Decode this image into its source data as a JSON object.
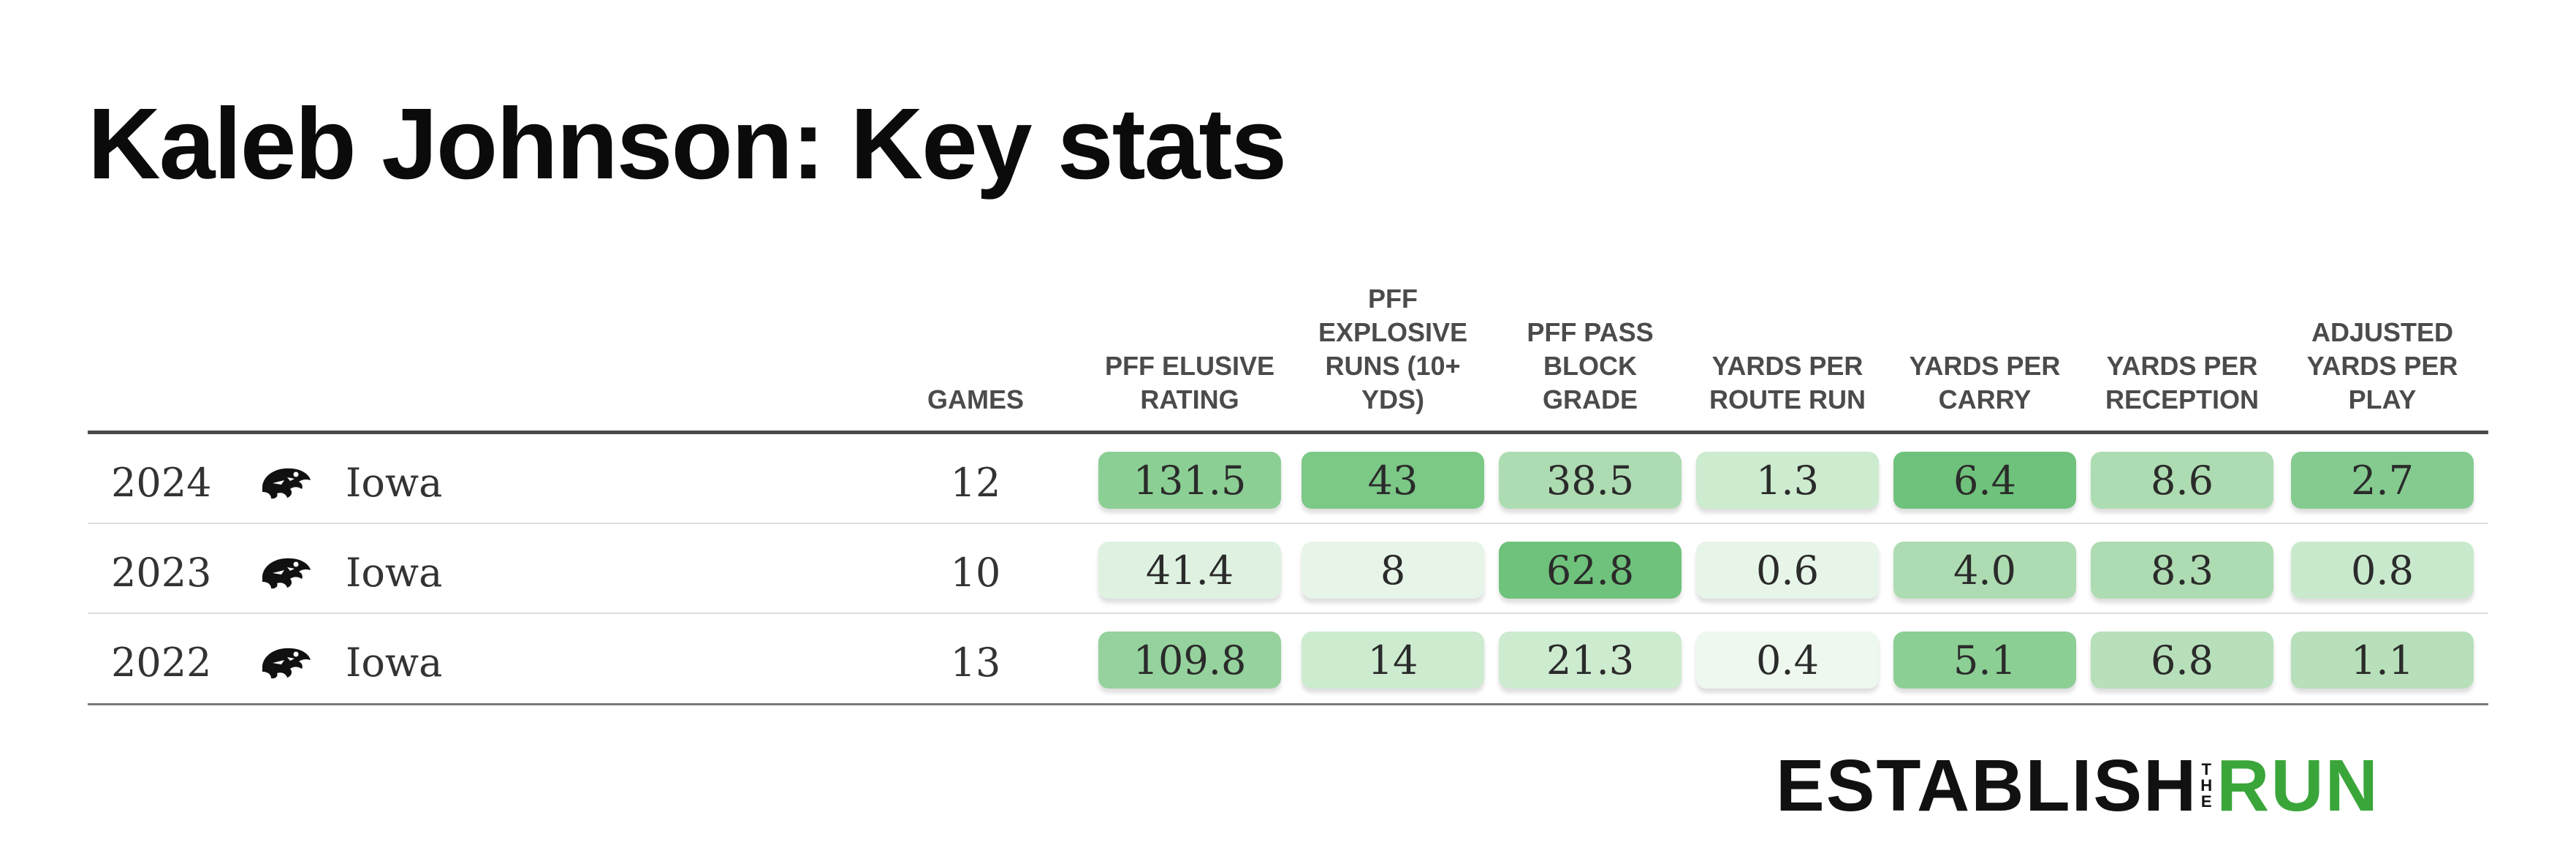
{
  "title": "Kaleb Johnson: Key stats",
  "brand": {
    "part1": "ESTABLISH",
    "connector": "THE",
    "part2": "RUN",
    "color": "#3aa63a"
  },
  "team_logo_icon": "iowa-hawkeye-icon",
  "chart_data": {
    "type": "table",
    "columns": [
      "GAMES",
      "PFF ELUSIVE\nRATING",
      "PFF\nEXPLOSIVE\nRUNS (10+\nYDS)",
      "PFF PASS\nBLOCK\nGRADE",
      "YARDS PER\nROUTE RUN",
      "YARDS PER\nCARRY",
      "YARDS PER\nRECEPTION",
      "ADJUSTED\nYARDS PER\nPLAY"
    ],
    "rows": [
      {
        "year": "2024",
        "team": "Iowa",
        "games": "12",
        "stats": [
          "131.5",
          "43",
          "38.5",
          "1.3",
          "6.4",
          "8.6",
          "2.7"
        ]
      },
      {
        "year": "2023",
        "team": "Iowa",
        "games": "10",
        "stats": [
          "41.4",
          "8",
          "62.8",
          "0.6",
          "4.0",
          "8.3",
          "0.8"
        ]
      },
      {
        "year": "2022",
        "team": "Iowa",
        "games": "13",
        "stats": [
          "109.8",
          "14",
          "21.3",
          "0.4",
          "5.1",
          "6.8",
          "1.1"
        ]
      }
    ],
    "cell_colors": [
      [
        "#8ccf95",
        "#7cc887",
        "#aedcb2",
        "#cdebcf",
        "#6fc27b",
        "#aedcb2",
        "#85cb90"
      ],
      [
        "#dff2e1",
        "#e6f5e8",
        "#6fc27b",
        "#e6f5e8",
        "#aedcb2",
        "#aedcb2",
        "#c9e9cc"
      ],
      [
        "#95d29d",
        "#cdebcf",
        "#cdebcf",
        "#eef8ef",
        "#8ccf95",
        "#b7e0ba",
        "#b7e0ba"
      ]
    ]
  }
}
